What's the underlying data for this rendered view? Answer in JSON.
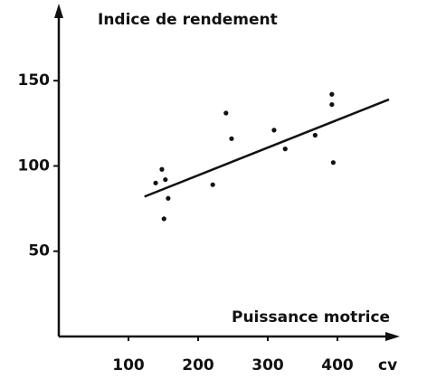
{
  "chart_data": {
    "type": "scatter",
    "y_label": "Indice de rendement",
    "x_label": "Puissance motrice",
    "x_unit": "cv",
    "x": [
      139,
      148,
      153,
      157,
      151,
      221,
      240,
      248,
      309,
      325,
      368,
      392,
      392,
      394
    ],
    "values": [
      90,
      98,
      92,
      81,
      69,
      89,
      131,
      116,
      121,
      110,
      118,
      142,
      136,
      102
    ],
    "color": "#111111",
    "trend": {
      "x": [
        123,
        474
      ],
      "values": [
        82,
        139
      ]
    },
    "xlim": [
      0,
      487
    ],
    "ylim": [
      0,
      192
    ],
    "xticks": [
      100,
      200,
      300,
      400
    ],
    "yticks": [
      50,
      100,
      150
    ]
  }
}
